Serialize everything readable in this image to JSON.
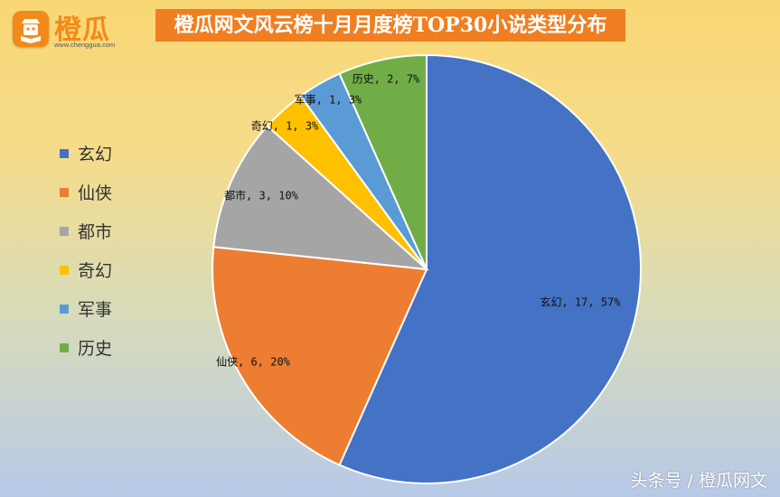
{
  "logo": {
    "brand": "橙瓜",
    "url": "www.chenggua.com"
  },
  "watermark": "头条号 / 橙瓜网文",
  "chart_data": {
    "type": "pie",
    "title": "橙瓜网文风云榜十月月度榜TOP30小说类型分布",
    "legend_position": "left",
    "slices": [
      {
        "label": "玄幻",
        "value": 17,
        "percent": "57%",
        "color": "#4472c4",
        "data_label": "玄幻, 17, 57%"
      },
      {
        "label": "仙侠",
        "value": 6,
        "percent": "20%",
        "color": "#ed7d31",
        "data_label": "仙侠, 6, 20%"
      },
      {
        "label": "都市",
        "value": 3,
        "percent": "10%",
        "color": "#a5a5a5",
        "data_label": "都市, 3, 10%"
      },
      {
        "label": "奇幻",
        "value": 1,
        "percent": "3%",
        "color": "#ffc000",
        "data_label": "奇幻, 1, 3%"
      },
      {
        "label": "军事",
        "value": 1,
        "percent": "3%",
        "color": "#5b9bd5",
        "data_label": "军事, 1, 3%"
      },
      {
        "label": "历史",
        "value": 2,
        "percent": "7%",
        "color": "#70ad47",
        "data_label": "历史, 2, 7%"
      }
    ]
  }
}
